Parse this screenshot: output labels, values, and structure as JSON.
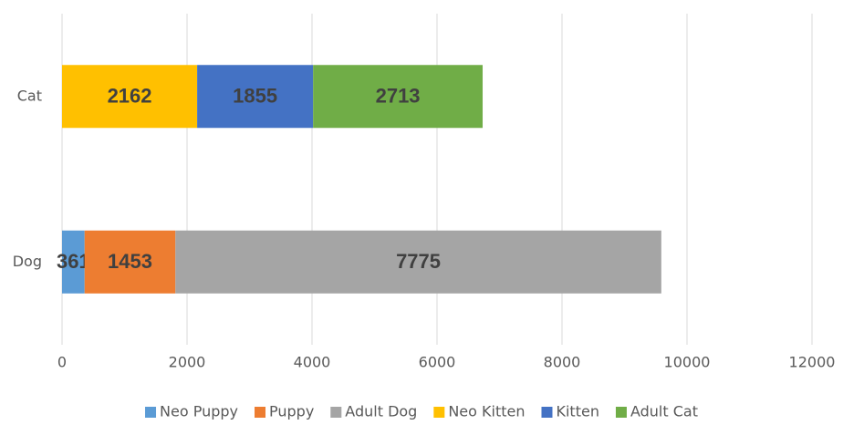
{
  "chart_data": {
    "type": "stacked-bar-horizontal",
    "categories": [
      "Dog",
      "Cat"
    ],
    "series": [
      {
        "name": "Neo Puppy",
        "color": "#5b9bd5",
        "values": [
          361,
          null
        ]
      },
      {
        "name": "Puppy",
        "color": "#ed7d31",
        "values": [
          1453,
          null
        ]
      },
      {
        "name": "Adult Dog",
        "color": "#a5a5a5",
        "values": [
          7775,
          null
        ]
      },
      {
        "name": "Neo Kitten",
        "color": "#ffc000",
        "values": [
          null,
          2162
        ]
      },
      {
        "name": "Kitten",
        "color": "#4472c4",
        "values": [
          null,
          1855
        ]
      },
      {
        "name": "Adult Cat",
        "color": "#70ad47",
        "values": [
          null,
          2713
        ]
      }
    ],
    "xlim": [
      0,
      12000
    ],
    "xticks": [
      0,
      2000,
      4000,
      6000,
      8000,
      10000,
      12000
    ],
    "grid": true,
    "legend": "bottom"
  }
}
